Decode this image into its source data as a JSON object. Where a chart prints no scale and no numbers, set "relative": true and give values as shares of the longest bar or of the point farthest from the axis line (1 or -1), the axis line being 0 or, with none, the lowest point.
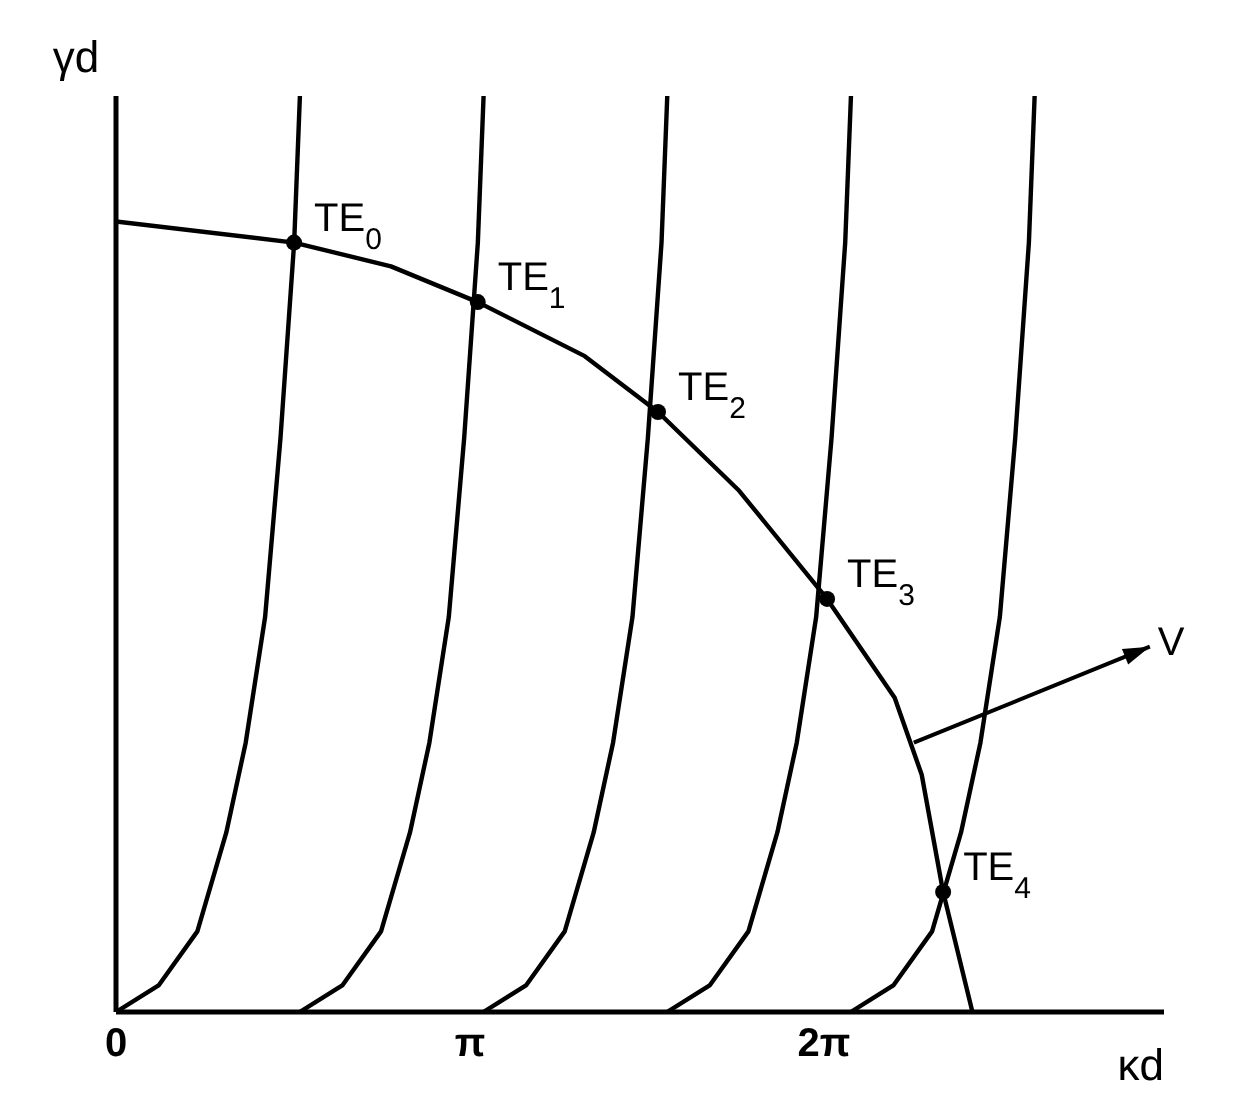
{
  "chart_data": {
    "type": "line",
    "xlabel": "κd",
    "ylabel": "γd",
    "relative": true,
    "xlim": [
      0,
      9.3
    ],
    "xticks": [
      0,
      {
        "value": 3.1416,
        "label": "π"
      },
      {
        "value": 6.2832,
        "label": "2π"
      }
    ],
    "series": [
      {
        "color": "#000000",
        "x": [
          0,
          1.58,
          2.44,
          3.21,
          4.16,
          4.81,
          5.53,
          6.31,
          6.91,
          7.15,
          7.34,
          7.6
        ],
        "values": [
          0.863,
          0.84,
          0.814,
          0.775,
          0.716,
          0.655,
          0.569,
          0.451,
          0.343,
          0.259,
          0.131,
          0
        ]
      },
      {
        "color": "#000000",
        "x": [
          0,
          0.378,
          0.722,
          0.979,
          1.151,
          1.323,
          1.46,
          1.581,
          1.632
        ],
        "values": [
          0,
          0.029,
          0.088,
          0.196,
          0.294,
          0.431,
          0.627,
          0.84,
          1
        ]
      },
      {
        "color": "#000000",
        "x": [
          1.63,
          2.008,
          2.352,
          2.609,
          2.781,
          2.953,
          3.09,
          3.211,
          3.262
        ],
        "values": [
          0,
          0.029,
          0.088,
          0.196,
          0.294,
          0.431,
          0.627,
          0.84,
          1
        ]
      },
      {
        "color": "#000000",
        "x": [
          3.26,
          3.638,
          3.982,
          4.239,
          4.411,
          4.583,
          4.72,
          4.841,
          4.892
        ],
        "values": [
          0,
          0.029,
          0.088,
          0.196,
          0.294,
          0.431,
          0.627,
          0.84,
          1
        ]
      },
      {
        "color": "#000000",
        "x": [
          4.89,
          5.268,
          5.612,
          5.869,
          6.041,
          6.213,
          6.35,
          6.471,
          6.522
        ],
        "values": [
          0,
          0.029,
          0.088,
          0.196,
          0.294,
          0.431,
          0.627,
          0.84,
          1
        ]
      },
      {
        "color": "#000000",
        "x": [
          6.52,
          6.898,
          7.242,
          7.499,
          7.671,
          7.843,
          7.98,
          8.101,
          8.152
        ],
        "values": [
          0,
          0.029,
          0.088,
          0.196,
          0.294,
          0.431,
          0.627,
          0.84,
          1
        ]
      },
      {
        "type": "scatter",
        "color": "#000000",
        "x": [
          1.58,
          3.21,
          4.81,
          6.31,
          7.34
        ],
        "values": [
          0.84,
          0.775,
          0.655,
          0.451,
          0.131
        ]
      }
    ],
    "annotations": [
      {
        "text": "TE$_{0}$",
        "x": 1.58,
        "y": 0.84
      },
      {
        "text": "TE$_{1}$",
        "x": 3.21,
        "y": 0.775
      },
      {
        "text": "TE$_{2}$",
        "x": 4.81,
        "y": 0.655
      },
      {
        "text": "TE$_{3}$",
        "x": 6.31,
        "y": 0.451
      },
      {
        "text": "TE$_{4}$",
        "x": 7.34,
        "y": 0.131
      },
      {
        "text": "V",
        "x": 7.08,
        "y": 0.294
      }
    ]
  }
}
